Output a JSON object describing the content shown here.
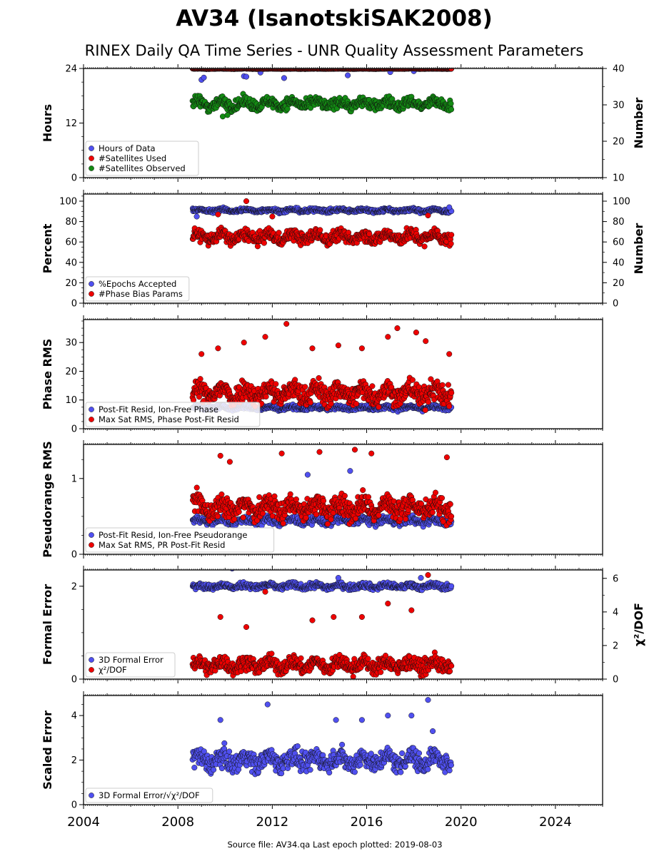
{
  "title": "AV34 (IsanotskiSAK2008)",
  "subtitle": "RINEX Daily QA Time Series - UNR Quality Assessment Parameters",
  "footer": "Source file: AV34.qa Last epoch plotted: 2019-08-03",
  "colors": {
    "blue": "#5050f0",
    "red": "#ee0000",
    "green": "#138a13",
    "edge": "#101010"
  },
  "chart_data": [
    {
      "type": "scatter",
      "xlim": [
        2004,
        2026
      ],
      "x_ticks": [
        2004,
        2008,
        2012,
        2016,
        2020,
        2024
      ],
      "ylabel": "Hours",
      "ylim": [
        0,
        24
      ],
      "yticks": [
        0,
        12,
        24
      ],
      "ylabel_right": "Number",
      "ylim_right": [
        10,
        40
      ],
      "yticks_right": [
        10,
        20,
        30,
        40
      ],
      "legend_position": "lower-left",
      "series": [
        {
          "name": "Hours of Data",
          "color": "blue",
          "axis": "left",
          "x_range": [
            2008.62,
            2019.59
          ],
          "y_base": 23.95,
          "spread": 0.05,
          "outliers": [
            [
              2009.0,
              21.5
            ],
            [
              2009.1,
              22.0
            ],
            [
              2010.8,
              22.3
            ],
            [
              2010.9,
              22.2
            ],
            [
              2011.5,
              23.1
            ],
            [
              2012.5,
              21.9
            ],
            [
              2015.2,
              22.5
            ],
            [
              2017.0,
              23.2
            ],
            [
              2018.0,
              23.4
            ]
          ]
        },
        {
          "name": "#Satellites Used",
          "color": "red",
          "axis": "right",
          "x_range": [
            2008.62,
            2019.59
          ],
          "y_base": 40.0,
          "spread": 0.05,
          "outliers": [
            [
              2009.7,
              30.0
            ]
          ]
        },
        {
          "name": "#Satellites Observed",
          "color": "green",
          "axis": "right",
          "x_range": [
            2008.62,
            2019.59
          ],
          "y_base": 30.3,
          "spread": 1.2,
          "outliers": [
            [
              2009.9,
              26.8
            ],
            [
              2010.1,
              27.2
            ]
          ]
        }
      ]
    },
    {
      "type": "scatter",
      "xlim": [
        2004,
        2026
      ],
      "ylabel": "Percent",
      "ylim": [
        0,
        107
      ],
      "yticks": [
        0,
        20,
        40,
        60,
        80,
        100
      ],
      "ylabel_right": "Number",
      "ylim_right": [
        0,
        107
      ],
      "yticks_right": [
        0,
        20,
        40,
        60,
        80,
        100
      ],
      "legend_position": "lower-left",
      "series": [
        {
          "name": "%Epochs Accepted",
          "color": "blue",
          "axis": "left",
          "x_range": [
            2008.62,
            2019.59
          ],
          "y_base": 91,
          "spread": 1.5,
          "outliers": [
            [
              2008.8,
              85.0
            ],
            [
              2019.5,
              94.0
            ]
          ]
        },
        {
          "name": "#Phase Bias Params",
          "color": "red",
          "axis": "right",
          "x_range": [
            2008.62,
            2019.59
          ],
          "y_base": 65,
          "spread": 5.0,
          "outliers": [
            [
              2010.9,
              100.0
            ],
            [
              2009.7,
              87.0
            ],
            [
              2012.0,
              85.0
            ],
            [
              2018.6,
              86.0
            ]
          ]
        }
      ]
    },
    {
      "type": "scatter",
      "xlim": [
        2004,
        2026
      ],
      "ylabel": "Phase RMS",
      "ylim": [
        0,
        38
      ],
      "yticks": [
        0,
        10,
        20,
        30
      ],
      "legend_position": "lower-left",
      "series": [
        {
          "name": "Post-Fit Resid, Ion-Free Phase",
          "color": "blue",
          "axis": "left",
          "x_range": [
            2008.62,
            2019.59
          ],
          "y_base": 7.3,
          "spread": 0.6,
          "outliers": []
        },
        {
          "name": "Max Sat RMS, Phase Post-Fit Resid",
          "color": "red",
          "axis": "left",
          "x_range": [
            2008.62,
            2019.59
          ],
          "y_base": 12.5,
          "spread": 3.0,
          "outliers": [
            [
              2012.6,
              36.5
            ],
            [
              2011.7,
              32.0
            ],
            [
              2016.9,
              32.0
            ],
            [
              2017.3,
              35.0
            ],
            [
              2018.1,
              33.5
            ],
            [
              2018.5,
              30.5
            ],
            [
              2010.8,
              30.0
            ],
            [
              2009.7,
              28.0
            ],
            [
              2013.7,
              28.0
            ],
            [
              2015.8,
              28.0
            ],
            [
              2014.8,
              29.0
            ],
            [
              2009.0,
              26.0
            ],
            [
              2019.5,
              26.0
            ]
          ]
        }
      ]
    },
    {
      "type": "scatter",
      "xlim": [
        2004,
        2026
      ],
      "ylabel": "Pseudorange RMS",
      "ylim": [
        0,
        1.45
      ],
      "yticks": [
        0,
        1
      ],
      "legend_position": "lower-left",
      "series": [
        {
          "name": "Post-Fit Resid, Ion-Free Pseudorange",
          "color": "blue",
          "axis": "left",
          "x_range": [
            2008.62,
            2019.59
          ],
          "y_base": 0.44,
          "spread": 0.04,
          "outliers": [
            [
              2013.5,
              1.05
            ],
            [
              2015.3,
              1.1
            ]
          ]
        },
        {
          "name": "Max Sat RMS, PR Post-Fit Resid",
          "color": "red",
          "axis": "left",
          "x_range": [
            2008.62,
            2019.59
          ],
          "y_base": 0.62,
          "spread": 0.12,
          "outliers": [
            [
              2015.5,
              1.38
            ],
            [
              2014.0,
              1.35
            ],
            [
              2012.4,
              1.33
            ],
            [
              2016.2,
              1.33
            ],
            [
              2009.8,
              1.3
            ],
            [
              2010.2,
              1.22
            ],
            [
              2019.4,
              1.28
            ]
          ]
        }
      ]
    },
    {
      "type": "scatter",
      "xlim": [
        2004,
        2026
      ],
      "ylabel": "Formal Error",
      "ylim": [
        0,
        2.35
      ],
      "yticks": [
        0,
        2
      ],
      "ylabel_right": "χ²/DOF",
      "ylim_right": [
        0,
        6.5
      ],
      "yticks_right": [
        0,
        2,
        4,
        6
      ],
      "legend_position": "lower-left",
      "series": [
        {
          "name": "3D Formal Error",
          "color": "blue",
          "axis": "left",
          "x_range": [
            2008.62,
            2019.59
          ],
          "y_base": 2.0,
          "spread": 0.05,
          "outliers": [
            [
              2010.3,
              2.38
            ],
            [
              2014.8,
              2.18
            ],
            [
              2018.3,
              2.18
            ]
          ]
        },
        {
          "name": "χ²/DOF",
          "color": "red",
          "axis": "right",
          "x_range": [
            2008.62,
            2019.59
          ],
          "y_base": 0.85,
          "spread": 0.35,
          "outliers": [
            [
              2018.6,
              6.2
            ],
            [
              2016.9,
              4.5
            ],
            [
              2017.9,
              4.1
            ],
            [
              2009.8,
              3.7
            ],
            [
              2014.6,
              3.7
            ],
            [
              2015.8,
              3.7
            ],
            [
              2013.7,
              3.5
            ],
            [
              2010.9,
              3.1
            ],
            [
              2011.7,
              5.2
            ]
          ]
        }
      ]
    },
    {
      "type": "scatter",
      "xlim": [
        2004,
        2026
      ],
      "ylabel": "Scaled Error",
      "ylim": [
        0,
        4.9
      ],
      "yticks": [
        0,
        2,
        4
      ],
      "legend_position": "lower-left",
      "series": [
        {
          "name": "3D Formal Error/√χ²/DOF",
          "color": "blue",
          "axis": "left",
          "x_range": [
            2008.62,
            2019.59
          ],
          "y_base": 2.0,
          "spread": 0.35,
          "outliers": [
            [
              2018.6,
              4.7
            ],
            [
              2011.8,
              4.5
            ],
            [
              2016.9,
              4.0
            ],
            [
              2017.9,
              4.0
            ],
            [
              2009.8,
              3.8
            ],
            [
              2014.7,
              3.8
            ],
            [
              2015.8,
              3.8
            ],
            [
              2018.8,
              3.3
            ]
          ]
        }
      ]
    }
  ]
}
